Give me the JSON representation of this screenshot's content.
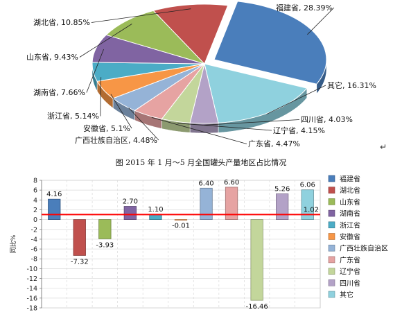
{
  "caption": "图   2015 年 1 月～5 月全国罐头产量地区占比情况",
  "caption_mark": "↵",
  "chart_data": [
    {
      "type": "pie",
      "title": "",
      "slices": [
        {
          "label": "福建省, 28.39%",
          "name": "福建省",
          "value": 28.39,
          "color": "#4a7ebb"
        },
        {
          "label": "其它, 16.31%",
          "name": "其它",
          "value": 16.31,
          "color": "#8fd1de"
        },
        {
          "label": "四川省, 4.03%",
          "name": "四川省",
          "value": 4.03,
          "color": "#b3a2c7"
        },
        {
          "label": "辽宁省, 4.15%",
          "name": "辽宁省",
          "value": 4.15,
          "color": "#c3d69b"
        },
        {
          "label": "广东省, 4.47%",
          "name": "广东省",
          "value": 4.47,
          "color": "#e6a3a2"
        },
        {
          "label": "广西壮族自治区, 4.48%",
          "name": "广西壮族自治区",
          "value": 4.48,
          "color": "#95b3d7"
        },
        {
          "label": "安徽省, 5.1%",
          "name": "安徽省",
          "value": 5.1,
          "color": "#f79646"
        },
        {
          "label": "浙江省, 5.14%",
          "name": "浙江省",
          "value": 5.14,
          "color": "#4bacc6"
        },
        {
          "label": "湖南省, 7.66%",
          "name": "湖南省",
          "value": 7.66,
          "color": "#8064a2"
        },
        {
          "label": "山东省, 9.43%",
          "name": "山东省",
          "value": 9.43,
          "color": "#9bbb59"
        },
        {
          "label": "湖北省, 10.85%",
          "name": "湖北省",
          "value": 10.85,
          "color": "#c0504d"
        }
      ]
    },
    {
      "type": "bar",
      "title": "",
      "ylabel": "同比%",
      "ylim": [
        -18,
        8
      ],
      "yticks": [
        "-18",
        "-16",
        "-14",
        "-12",
        "-10",
        "-8",
        "-6",
        "-4",
        "-2",
        "0",
        "2",
        "4",
        "6",
        "8"
      ],
      "grid": true,
      "legend_position": "right",
      "reference_line": {
        "value": 1.02,
        "label": "1.02",
        "color": "#ff0000"
      },
      "categories": [
        "福建省",
        "湖北省",
        "山东省",
        "湖南省",
        "浙江省",
        "安徽省",
        "广西壮族自治区",
        "广东省",
        "辽宁省",
        "四川省",
        "其它"
      ],
      "colors": [
        "#4a7ebb",
        "#c0504d",
        "#9bbb59",
        "#8064a2",
        "#4bacc6",
        "#f79646",
        "#95b3d7",
        "#e6a3a2",
        "#c3d69b",
        "#b3a2c7",
        "#8fd1de"
      ],
      "values": [
        4.16,
        -7.32,
        -3.93,
        2.7,
        1.1,
        -0.01,
        6.4,
        6.6,
        -16.46,
        5.26,
        6.06
      ],
      "value_labels": [
        "4.16",
        "-7.32",
        "-3.93",
        "2.70",
        "1.10",
        "-0.01",
        "6.40",
        "6.60",
        "-16.46",
        "5.26",
        "6.06"
      ]
    }
  ]
}
